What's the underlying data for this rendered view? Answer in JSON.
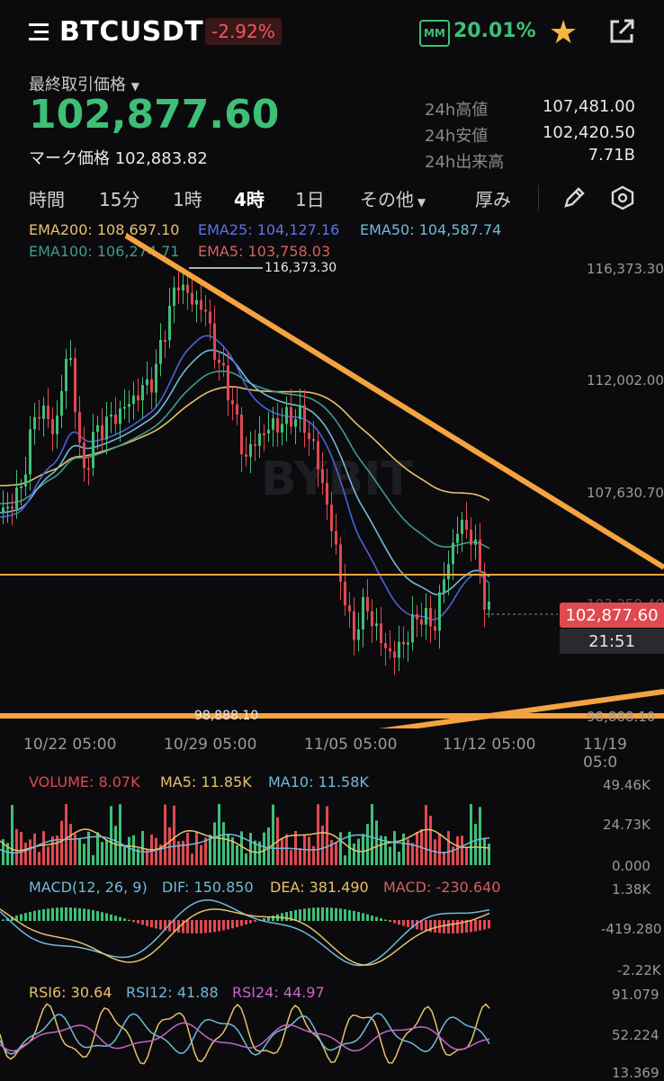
{
  "header": {
    "symbol": "BTCUSDT",
    "change": "-2.92%",
    "mm_label": "MM",
    "mm_value": "20.01%"
  },
  "price": {
    "label": "最終取引価格",
    "last": "102,877.60",
    "mark": "マーク価格 102,883.82",
    "stats": [
      {
        "label": "24h高値",
        "value": "107,481.00"
      },
      {
        "label": "24h安値",
        "value": "102,420.50"
      },
      {
        "label": "24h出来高",
        "value": "7.71B"
      }
    ]
  },
  "tabs": [
    "時間",
    "15分",
    "1時",
    "4時",
    "1日",
    "その他",
    "厚み"
  ],
  "active_tab": "4時",
  "ema": {
    "ema200": "EMA200: 108,697.10",
    "ema25": "EMA25: 104,127.16",
    "ema50": "EMA50: 104,587.74",
    "ema100": "EMA100: 106,274.71",
    "ema5": "EMA5: 103,758.03"
  },
  "chart": {
    "y_ticks": [
      "116,373.30",
      "112,002.00",
      "107,630.70",
      "103,259.40",
      "98,888.10"
    ],
    "x_ticks": [
      "10/22 05:00",
      "10/29 05:00",
      "11/05 05:00",
      "11/12 05:00",
      "11/19 05:0"
    ],
    "high_marker": "116,373.30",
    "low_marker": "98,888.10",
    "last_price": "102,877.60",
    "countdown": "21:51",
    "watermark": "BYBIT"
  },
  "volume": {
    "volume": "VOLUME: 8.07K",
    "ma5": "MA5: 11.85K",
    "ma10": "MA10: 11.58K",
    "ticks": [
      "49.46K",
      "24.73K",
      "0.000"
    ]
  },
  "macd": {
    "label": "MACD(12, 26, 9)",
    "dif": "DIF: 150.850",
    "dea": "DEA: 381.490",
    "macd": "MACD: -230.640",
    "ticks": [
      "1.38K",
      "-419.280",
      "-2.22K"
    ]
  },
  "rsi": {
    "rsi6": "RSI6: 30.64",
    "rsi12": "RSI12: 41.88",
    "rsi24": "RSI24: 44.97",
    "ticks": [
      "91.079",
      "52.224",
      "13.369"
    ]
  },
  "colors": {
    "up": "#3fbf76",
    "down": "#e0494f",
    "ema200": "#e8c06a",
    "ema25": "#4b62d9",
    "ema50": "#72b9d8",
    "ema100": "#3f9c8c",
    "ema5": "#d7605d",
    "trendline": "#f5a340"
  }
}
